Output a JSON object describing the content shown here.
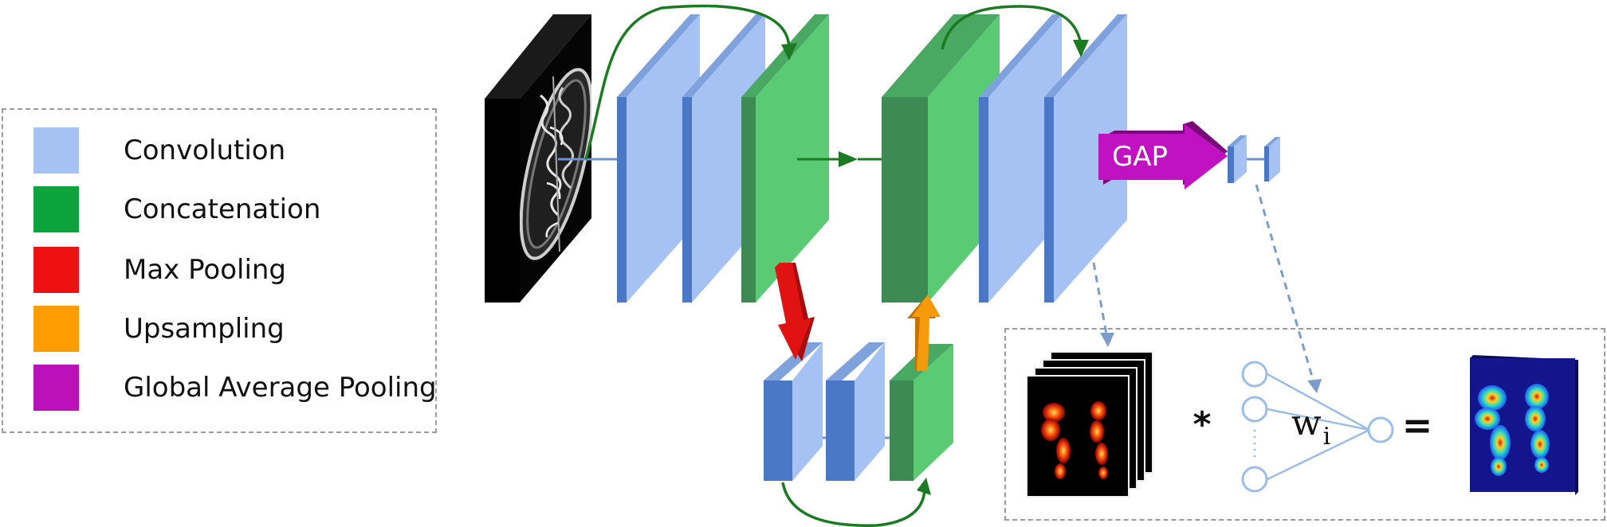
{
  "legend": {
    "items": [
      {
        "label": "Convolution",
        "color": "#a6c2f5"
      },
      {
        "label": "Concatenation",
        "color": "#0ba33c"
      },
      {
        "label": "Max Pooling",
        "color": "#ee1111"
      },
      {
        "label": "Upsampling",
        "color": "#ff9c00"
      },
      {
        "label": "Global Average Pooling",
        "color": "#bb11bb"
      }
    ]
  },
  "colors": {
    "conv_front": "#a6c2f5",
    "conv_side": "#4a78c6",
    "concat_front": "#5acb74",
    "concat_side": "#3d8a54",
    "connector": "#6f93cf",
    "skip_arrow": "#1b7a22",
    "maxpool_arrow": "#e01212",
    "upsample_arrow": "#f59a0a",
    "gap_arrow": "#c012c0",
    "dashed_link": "#7d9cc9",
    "neuron": "#9cbde6"
  },
  "network": {
    "gap_label": "GAP"
  },
  "cam_equation": {
    "multiply": "*",
    "weight": "w",
    "weight_subscript": "i",
    "equals": "="
  }
}
